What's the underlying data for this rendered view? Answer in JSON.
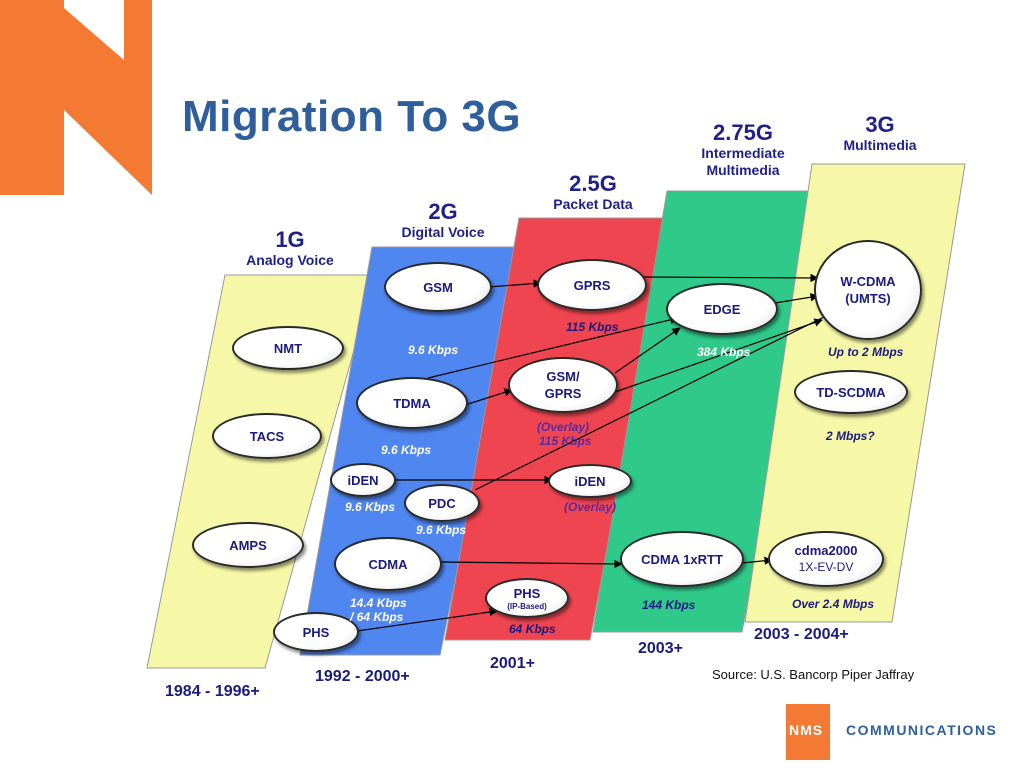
{
  "title": "Migration To 3G",
  "generations": [
    {
      "gen": "1G",
      "desc": "Analog Voice",
      "years": "1984 - 1996+"
    },
    {
      "gen": "2G",
      "desc": "Digital Voice",
      "years": "1992 - 2000+"
    },
    {
      "gen": "2.5G",
      "desc": "Packet Data",
      "years": "2001+"
    },
    {
      "gen": "2.75G",
      "desc_line1": "Intermediate",
      "desc_line2": "Multimedia",
      "years": "2003+"
    },
    {
      "gen": "3G",
      "desc": "Multimedia",
      "years": "2003 - 2004+"
    }
  ],
  "colors": {
    "g1": "#f7f7a8",
    "g2": "#4f86f0",
    "g25": "#ef4550",
    "g275": "#2fc98a",
    "g3": "#f7f7a8",
    "title": "#2f5f9a",
    "brand_orange": "#f47a33"
  },
  "nodes": {
    "nmt": "NMT",
    "tacs": "TACS",
    "amps": "AMPS",
    "gsm": "GSM",
    "tdma": "TDMA",
    "iden": "iDEN",
    "pdc": "PDC",
    "cdma": "CDMA",
    "phs": "PHS",
    "gprs": "GPRS",
    "gsm_gprs_1": "GSM/",
    "gsm_gprs_2": "GPRS",
    "iden_overlay": "iDEN",
    "phs_ip": "PHS",
    "phs_ip_sub": "(IP-Based)",
    "edge": "EDGE",
    "cdma1x": "CDMA 1xRTT",
    "wcdma_1": "W-CDMA",
    "wcdma_2": "(UMTS)",
    "tdscdma": "TD-SCDMA",
    "cdma2000_1": "cdma2000",
    "cdma2000_2": "1X-EV-DV"
  },
  "speeds": {
    "gsm": "9.6 Kbps",
    "tdma": "9.6 Kbps",
    "iden": "9.6 Kbps",
    "pdc": "9.6 Kbps",
    "cdma_1": "14.4 Kbps",
    "cdma_2": "/ 64 Kbps",
    "gprs": "115 Kbps",
    "gsm_gprs_1": "(Overlay)",
    "gsm_gprs_2": "115 Kbps",
    "iden_overlay": "(Overlay)",
    "phs_ip": "64 Kbps",
    "edge": "384 Kbps",
    "cdma1x": "144 Kbps",
    "wcdma": "Up to 2 Mbps",
    "tdscdma": "2 Mbps?",
    "cdma2000": "Over 2.4 Mbps"
  },
  "source": "Source: U.S. Bancorp Piper Jaffray",
  "logo": {
    "nms": "NMS",
    "communications": "COMMUNICATIONS"
  }
}
